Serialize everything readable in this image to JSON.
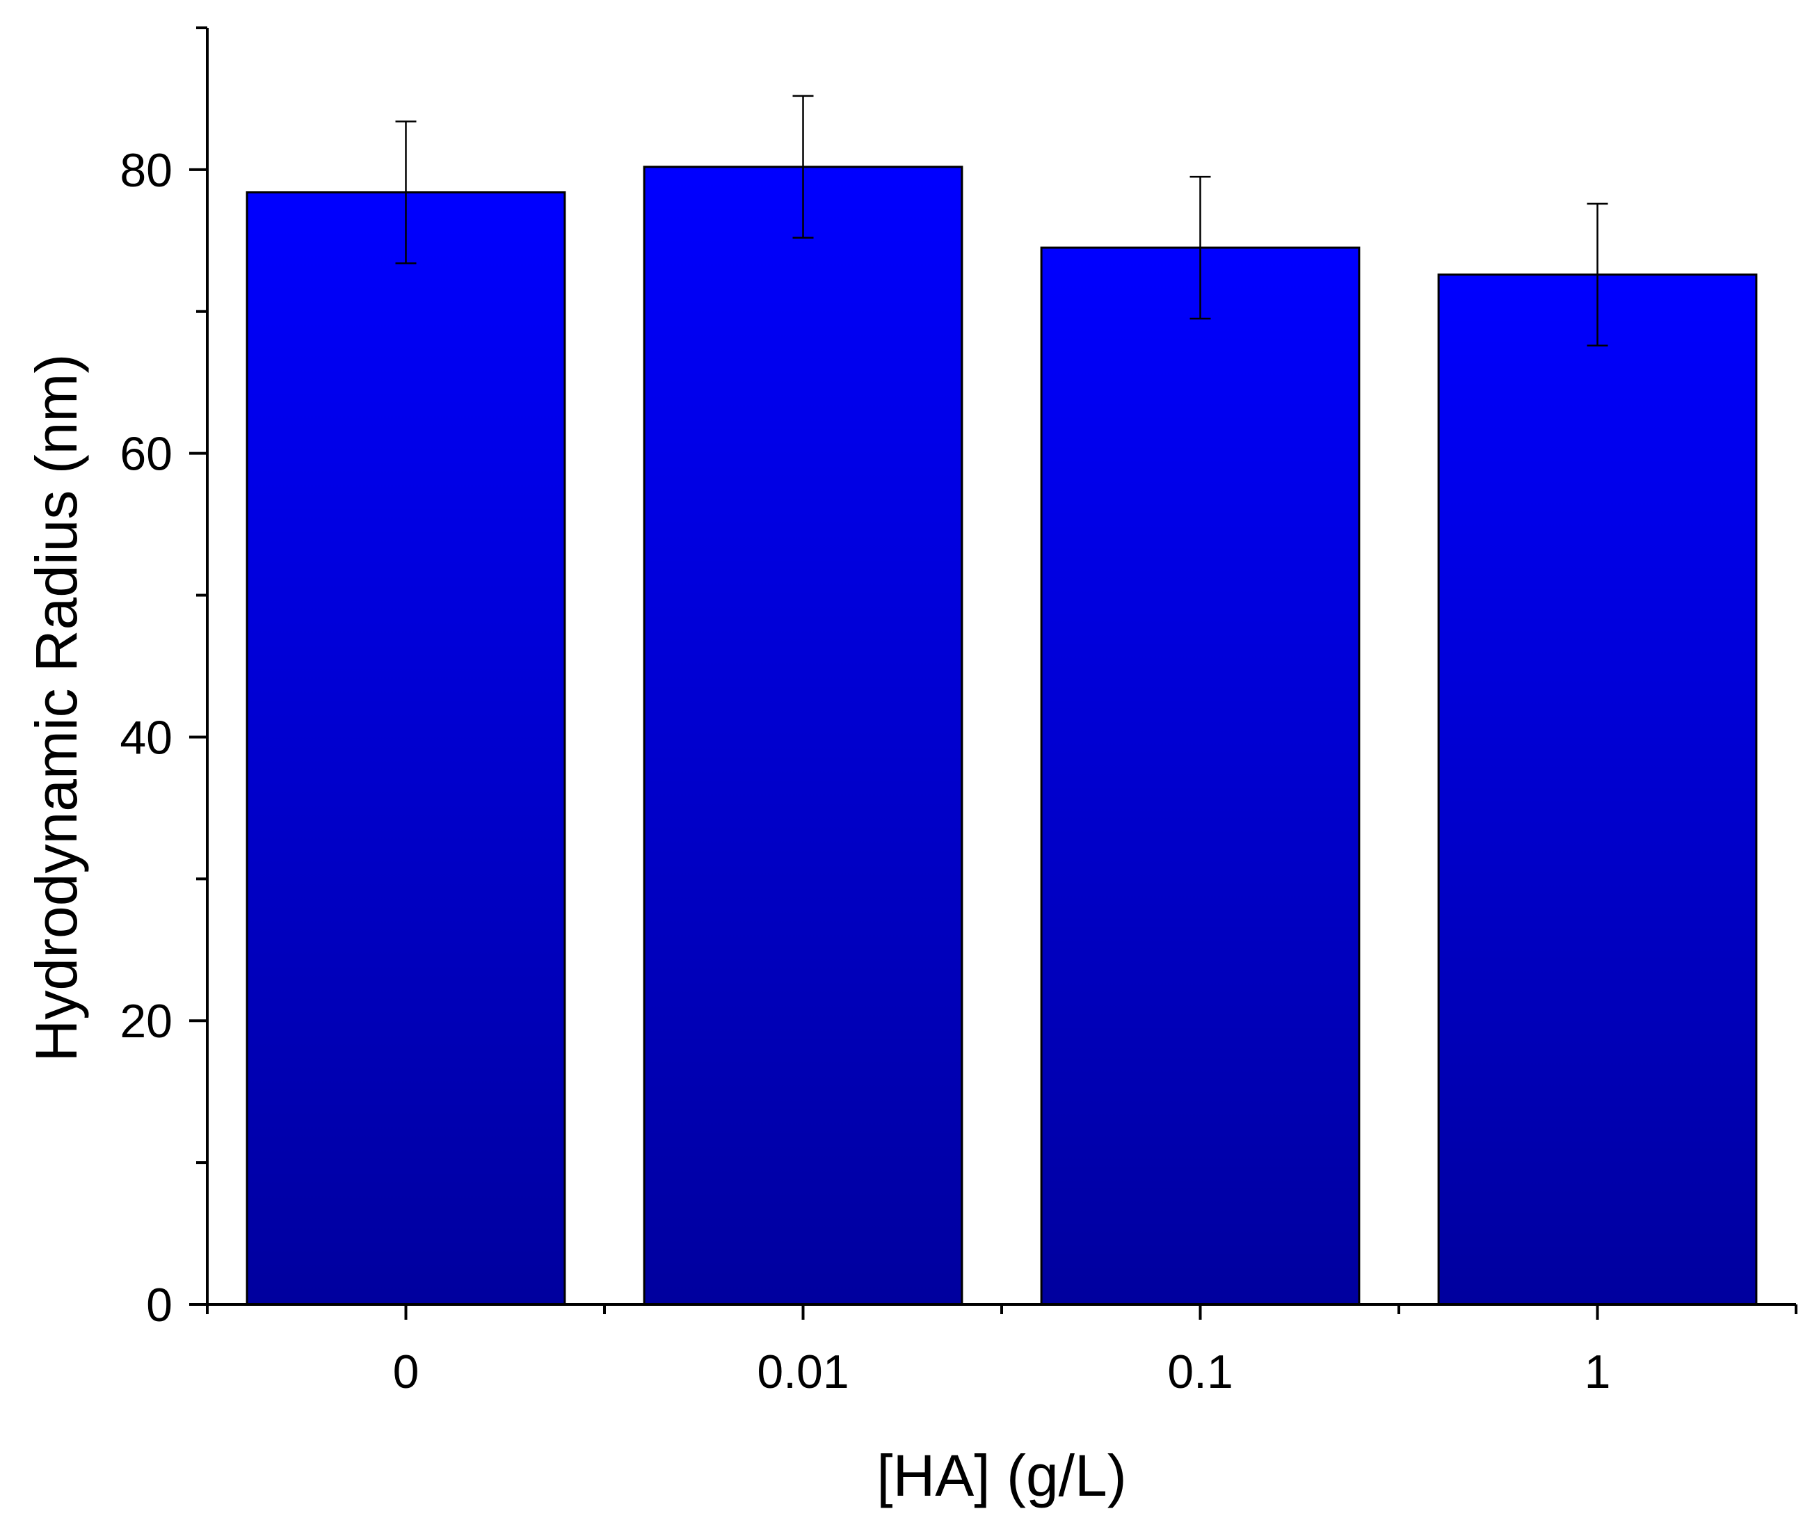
{
  "chart_data": {
    "type": "bar",
    "title": "",
    "xlabel": "[HA] (g/L)",
    "ylabel": "Hydrodynamic Radius (nm)",
    "categories": [
      "0",
      "0.01",
      "0.1",
      "1"
    ],
    "values": [
      78.4,
      80.2,
      74.5,
      72.6
    ],
    "errors": [
      5.0,
      5.0,
      5.0,
      5.0
    ],
    "ylim": [
      0,
      90
    ],
    "yticks": [
      "0",
      "20",
      "40",
      "60",
      "80"
    ],
    "yminor_step": 10,
    "grid": false,
    "legend": "none",
    "bar_color_top": "#0000ff",
    "bar_color_bottom": "#00009e",
    "bar_edge_color": "#000000"
  }
}
